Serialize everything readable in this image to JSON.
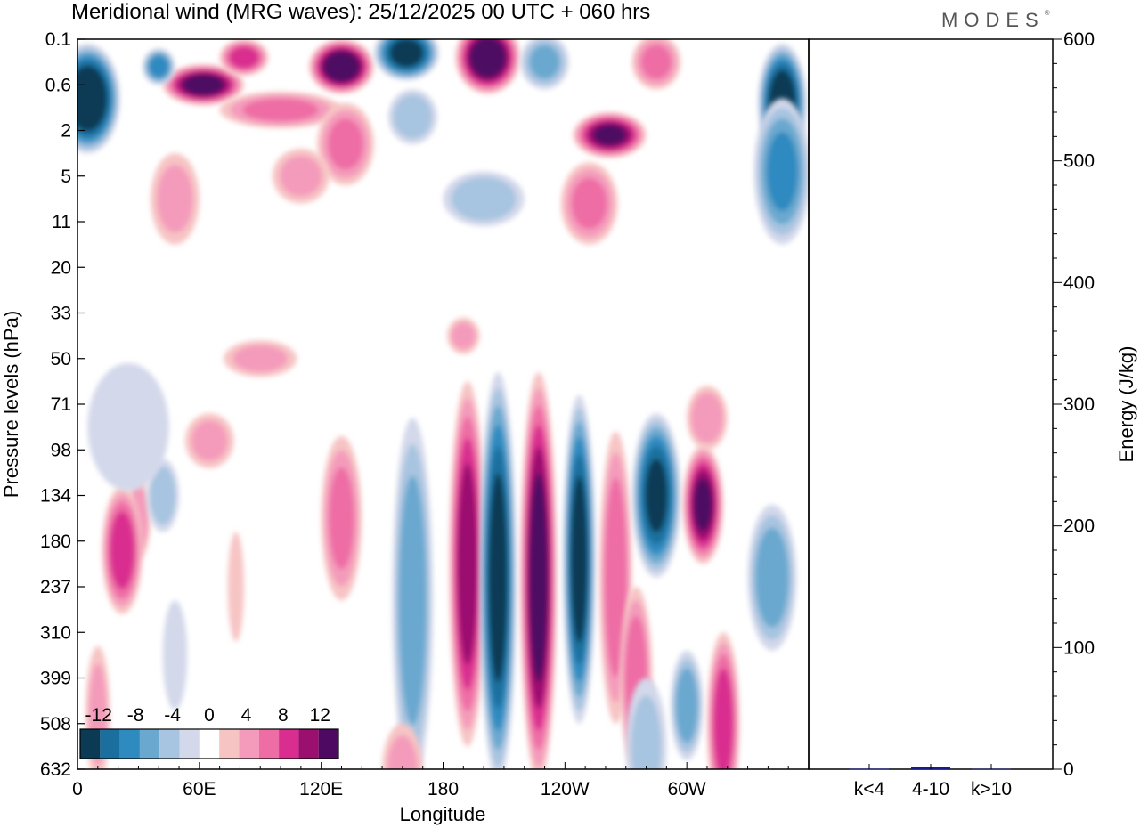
{
  "title": "Meridional wind (MRG waves):  25/12/2025  00 UTC  + 060 hrs",
  "logo": {
    "text": "MODES",
    "mark": "®"
  },
  "colors": {
    "neg": [
      "#0b3a55",
      "#1a6f9e",
      "#2f8ac0",
      "#6aa8cf",
      "#a7c4e0",
      "#d3d8ea"
    ],
    "pos": [
      "#f7c4c4",
      "#f49bbb",
      "#ee6da4",
      "#d92d8f",
      "#9b106f",
      "#4e0a63"
    ],
    "zero": "#ffffff",
    "bar": "#1a1a8a"
  },
  "chart_data": [
    {
      "type": "heatmap",
      "title": "Meridional wind (MRG waves):  25/12/2025  00 UTC  + 060 hrs",
      "xlabel": "Longitude",
      "ylabel": "Pressure levels (hPa)",
      "xticks": [
        "0",
        "60E",
        "120E",
        "180",
        "120W",
        "60W"
      ],
      "xtick_values": [
        0,
        60,
        120,
        180,
        240,
        300
      ],
      "xlim": [
        0,
        360
      ],
      "yticks": [
        "0.1",
        "0.6",
        "2",
        "5",
        "11",
        "20",
        "33",
        "50",
        "71",
        "98",
        "134",
        "180",
        "237",
        "310",
        "399",
        "508",
        "632"
      ],
      "colorbar": {
        "labels": [
          "-12",
          "-8",
          "-4",
          "0",
          "4",
          "8",
          "12"
        ],
        "levels": [
          -14,
          -12,
          -10,
          -8,
          -6,
          -4,
          -2,
          2,
          4,
          6,
          8,
          10,
          12,
          14
        ]
      },
      "features": [
        {
          "lon": 5,
          "p_idx": 1.3,
          "value": -15,
          "w": 16,
          "h": 1.2
        },
        {
          "lon": 347,
          "p_idx": 1.4,
          "value": -14,
          "w": 12,
          "h": 1.3
        },
        {
          "lon": 347,
          "p_idx": 2.9,
          "value": -8,
          "w": 14,
          "h": 1.6
        },
        {
          "lon": 62,
          "p_idx": 1.0,
          "value": 13,
          "w": 20,
          "h": 0.45
        },
        {
          "lon": 40,
          "p_idx": 0.6,
          "value": -9,
          "w": 8,
          "h": 0.4
        },
        {
          "lon": 82,
          "p_idx": 0.4,
          "value": 9,
          "w": 12,
          "h": 0.4
        },
        {
          "lon": 130,
          "p_idx": 0.6,
          "value": 14,
          "w": 16,
          "h": 0.6
        },
        {
          "lon": 100,
          "p_idx": 1.55,
          "value": 6,
          "w": 30,
          "h": 0.4
        },
        {
          "lon": 162,
          "p_idx": 0.3,
          "value": -13,
          "w": 16,
          "h": 0.6
        },
        {
          "lon": 202,
          "p_idx": 0.4,
          "value": 14,
          "w": 16,
          "h": 0.8
        },
        {
          "lon": 230,
          "p_idx": 0.5,
          "value": -6,
          "w": 12,
          "h": 0.6
        },
        {
          "lon": 262,
          "p_idx": 2.1,
          "value": 12,
          "w": 18,
          "h": 0.5
        },
        {
          "lon": 285,
          "p_idx": 0.5,
          "value": 6,
          "w": 12,
          "h": 0.6
        },
        {
          "lon": 165,
          "p_idx": 1.7,
          "value": -5,
          "w": 12,
          "h": 0.6
        },
        {
          "lon": 132,
          "p_idx": 2.3,
          "value": 6,
          "w": 14,
          "h": 0.9
        },
        {
          "lon": 252,
          "p_idx": 3.6,
          "value": 6,
          "w": 14,
          "h": 0.9
        },
        {
          "lon": 200,
          "p_idx": 3.5,
          "value": -5,
          "w": 20,
          "h": 0.6
        },
        {
          "lon": 110,
          "p_idx": 3.0,
          "value": 4,
          "w": 14,
          "h": 0.6
        },
        {
          "lon": 48,
          "p_idx": 3.5,
          "value": 4,
          "w": 12,
          "h": 1.0
        },
        {
          "lon": 310,
          "p_idx": 8.3,
          "value": 5,
          "w": 10,
          "h": 0.7
        },
        {
          "lon": 65,
          "p_idx": 8.8,
          "value": 4,
          "w": 12,
          "h": 0.6
        },
        {
          "lon": 30,
          "p_idx": 10.5,
          "value": 5,
          "w": 6,
          "h": 0.9
        },
        {
          "lon": 22,
          "p_idx": 11.2,
          "value": 9,
          "w": 10,
          "h": 1.4
        },
        {
          "lon": 42,
          "p_idx": 10.0,
          "value": -5,
          "w": 8,
          "h": 0.8
        },
        {
          "lon": 25,
          "p_idx": 8.5,
          "value": -3,
          "w": 20,
          "h": 1.4
        },
        {
          "lon": 130,
          "p_idx": 10.5,
          "value": 6,
          "w": 10,
          "h": 1.8
        },
        {
          "lon": 165,
          "p_idx": 12.3,
          "value": -7,
          "w": 10,
          "h": 4.0
        },
        {
          "lon": 192,
          "p_idx": 11.5,
          "value": 11,
          "w": 9,
          "h": 4.0
        },
        {
          "lon": 207,
          "p_idx": 11.8,
          "value": -13,
          "w": 9,
          "h": 4.5
        },
        {
          "lon": 227,
          "p_idx": 11.8,
          "value": 13,
          "w": 9,
          "h": 4.5
        },
        {
          "lon": 247,
          "p_idx": 11.4,
          "value": -13,
          "w": 8,
          "h": 3.6
        },
        {
          "lon": 265,
          "p_idx": 11.8,
          "value": 7,
          "w": 8,
          "h": 3.2
        },
        {
          "lon": 285,
          "p_idx": 10.0,
          "value": -12,
          "w": 12,
          "h": 1.8
        },
        {
          "lon": 308,
          "p_idx": 10.2,
          "value": 12,
          "w": 10,
          "h": 1.3
        },
        {
          "lon": 300,
          "p_idx": 14.6,
          "value": -7,
          "w": 8,
          "h": 1.2
        },
        {
          "lon": 318,
          "p_idx": 15.0,
          "value": 9,
          "w": 8,
          "h": 2.0
        },
        {
          "lon": 275,
          "p_idx": 14.0,
          "value": 7,
          "w": 8,
          "h": 2.0
        },
        {
          "lon": 342,
          "p_idx": 11.8,
          "value": -7,
          "w": 12,
          "h": 1.6
        },
        {
          "lon": 280,
          "p_idx": 15.5,
          "value": -4,
          "w": 10,
          "h": 1.5
        },
        {
          "lon": 10,
          "p_idx": 14.8,
          "value": 4,
          "w": 6,
          "h": 1.5
        },
        {
          "lon": 48,
          "p_idx": 13.5,
          "value": -3,
          "w": 6,
          "h": 1.2
        },
        {
          "lon": 78,
          "p_idx": 12.0,
          "value": 3,
          "w": 4,
          "h": 1.2
        },
        {
          "lon": 90,
          "p_idx": 7.0,
          "value": 4,
          "w": 18,
          "h": 0.4
        },
        {
          "lon": 160,
          "p_idx": 16.0,
          "value": 4,
          "w": 10,
          "h": 1.0
        },
        {
          "lon": 190,
          "p_idx": 6.5,
          "value": 4,
          "w": 8,
          "h": 0.4
        }
      ]
    },
    {
      "type": "bar",
      "title": "",
      "xlabel": "",
      "ylabel": "Energy (J/kg)",
      "categories": [
        "k<4",
        "4-10",
        "k>10"
      ],
      "values": [
        0.4,
        2.0,
        0.3
      ],
      "ylim": [
        0,
        600
      ],
      "yticks": [
        "0",
        "100",
        "200",
        "300",
        "400",
        "500",
        "600"
      ],
      "ytick_values": [
        0,
        100,
        200,
        300,
        400,
        500,
        600
      ]
    }
  ]
}
